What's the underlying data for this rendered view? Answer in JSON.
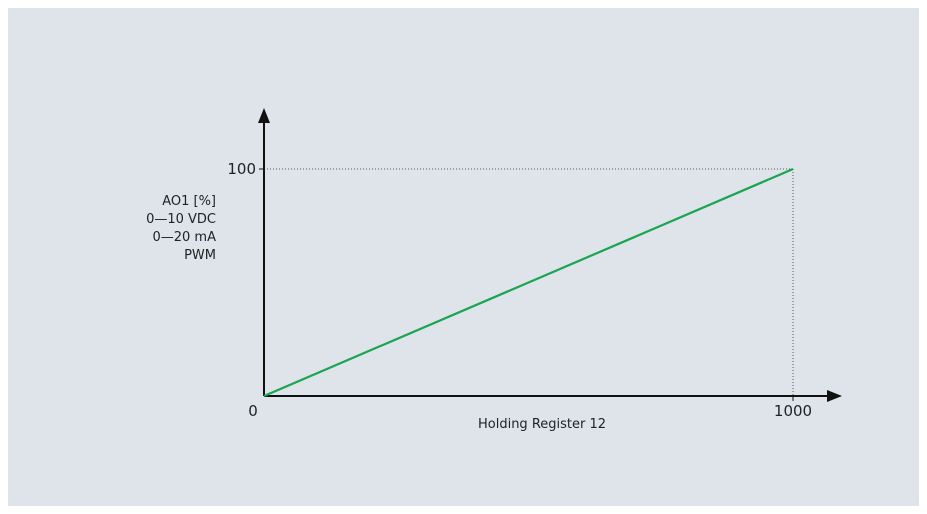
{
  "chart_data": {
    "type": "line",
    "title": "",
    "xlabel": "Holding Register 12",
    "ylabel_lines": [
      "AO1 [%]",
      "0—10 VDC",
      "0—20 mA",
      "PWM"
    ],
    "origin_label": "0",
    "x_tick_labels": [
      "1000"
    ],
    "y_tick_labels": [
      "100"
    ],
    "xlim": [
      0,
      1000
    ],
    "ylim": [
      0,
      100
    ],
    "series": [
      {
        "x": [
          0,
          1000
        ],
        "y": [
          0,
          100
        ]
      }
    ],
    "reference_lines": "dotted guides from x=1000 and y=100 to the line end point",
    "grid": false,
    "colors": {
      "line": "#1aa550",
      "axis": "#111111",
      "guide": "#555555",
      "background": "#dfe3ea"
    }
  }
}
